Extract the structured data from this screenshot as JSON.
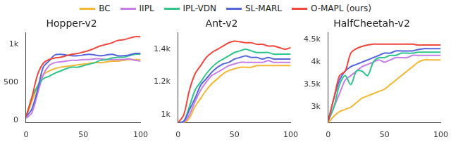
{
  "chart_data": [
    {
      "type": "line",
      "title": "Hopper-v2",
      "x": [
        0,
        5,
        10,
        15,
        20,
        25,
        30,
        35,
        40,
        45,
        50,
        55,
        60,
        65,
        70,
        75,
        80,
        85,
        90,
        95,
        100
      ],
      "xlim": [
        0,
        100
      ],
      "xticks": [
        0,
        50,
        100
      ],
      "ylim": [
        -30,
        1150
      ],
      "yticks": [
        0,
        500,
        {
          "value": 1000,
          "label": "1k"
        }
      ],
      "grid": false,
      "series": [
        {
          "name": "BC",
          "color": "#f5b731",
          "values": [
            50,
            250,
            450,
            600,
            650,
            680,
            700,
            710,
            720,
            730,
            740,
            750,
            760,
            760,
            770,
            780,
            780,
            790,
            800,
            800,
            800
          ]
        },
        {
          "name": "IIPL",
          "color": "#c77de8",
          "values": [
            30,
            100,
            350,
            600,
            720,
            760,
            770,
            780,
            790,
            790,
            800,
            800,
            810,
            810,
            800,
            800,
            800,
            800,
            810,
            790,
            780
          ]
        },
        {
          "name": "IPL-VDN",
          "color": "#2ec48b",
          "values": [
            50,
            300,
            450,
            550,
            580,
            620,
            650,
            680,
            700,
            700,
            720,
            740,
            760,
            790,
            800,
            820,
            830,
            830,
            850,
            870,
            870
          ]
        },
        {
          "name": "SL-MARL",
          "color": "#5566dd",
          "values": [
            50,
            150,
            400,
            700,
            780,
            860,
            870,
            860,
            850,
            850,
            860,
            870,
            860,
            850,
            860,
            870,
            850,
            850,
            860,
            880,
            880
          ]
        },
        {
          "name": "O-MAPL (ours)",
          "color": "#f0463c",
          "values": [
            50,
            300,
            600,
            750,
            800,
            820,
            830,
            850,
            870,
            880,
            900,
            920,
            950,
            980,
            1000,
            1020,
            1050,
            1060,
            1080,
            1100,
            1100
          ]
        }
      ]
    },
    {
      "type": "line",
      "title": "Ant-v2",
      "x": [
        0,
        5,
        10,
        15,
        20,
        25,
        30,
        35,
        40,
        45,
        50,
        55,
        60,
        65,
        70,
        75,
        80,
        85,
        90,
        95,
        100
      ],
      "xlim": [
        0,
        100
      ],
      "xticks": [
        0,
        50,
        100
      ],
      "ylim": [
        950,
        1500
      ],
      "yticks": [
        {
          "value": 1000,
          "label": "1k"
        },
        {
          "value": 1200,
          "label": "1.2k"
        },
        {
          "value": 1400,
          "label": "1.4k"
        }
      ],
      "grid": false,
      "series": [
        {
          "name": "BC",
          "color": "#f5b731",
          "values": [
            950,
            950,
            980,
            1050,
            1100,
            1150,
            1190,
            1220,
            1250,
            1270,
            1280,
            1290,
            1290,
            1290,
            1300,
            1300,
            1300,
            1300,
            1300,
            1300,
            1300
          ]
        },
        {
          "name": "IIPL",
          "color": "#c77de8",
          "values": [
            950,
            955,
            1000,
            1080,
            1150,
            1200,
            1240,
            1260,
            1280,
            1300,
            1310,
            1320,
            1320,
            1320,
            1320,
            1320,
            1330,
            1320,
            1320,
            1320,
            1320
          ]
        },
        {
          "name": "IPL-VDN",
          "color": "#2ec48b",
          "values": [
            950,
            960,
            1050,
            1150,
            1200,
            1250,
            1290,
            1320,
            1340,
            1360,
            1380,
            1390,
            1400,
            1390,
            1380,
            1380,
            1380,
            1370,
            1370,
            1370,
            1370
          ]
        },
        {
          "name": "SL-MARL",
          "color": "#5566dd",
          "values": [
            950,
            960,
            1030,
            1100,
            1180,
            1220,
            1260,
            1290,
            1310,
            1320,
            1340,
            1350,
            1360,
            1350,
            1350,
            1340,
            1350,
            1340,
            1340,
            1340,
            1340
          ]
        },
        {
          "name": "O-MAPL (ours)",
          "color": "#f0463c",
          "values": [
            950,
            1000,
            1150,
            1250,
            1300,
            1350,
            1380,
            1400,
            1420,
            1440,
            1450,
            1445,
            1440,
            1440,
            1430,
            1430,
            1420,
            1420,
            1410,
            1400,
            1410
          ]
        }
      ]
    },
    {
      "type": "line",
      "title": "HalfCheetah-v2",
      "x": [
        0,
        5,
        10,
        15,
        20,
        25,
        30,
        35,
        40,
        45,
        50,
        55,
        60,
        65,
        70,
        75,
        80,
        85,
        90,
        95,
        100
      ],
      "xlim": [
        0,
        100
      ],
      "xticks": [
        0,
        50,
        100
      ],
      "ylim": [
        2650,
        4650
      ],
      "yticks": [
        {
          "value": 3000,
          "label": "3k"
        },
        {
          "value": 3500,
          "label": "3.5k"
        },
        {
          "value": 4000,
          "label": "4k"
        },
        {
          "value": 4500,
          "label": "4.5k"
        }
      ],
      "grid": false,
      "series": [
        {
          "name": "BC",
          "color": "#f5b731",
          "values": [
            2650,
            2800,
            2900,
            2950,
            3000,
            3100,
            3200,
            3250,
            3300,
            3350,
            3400,
            3500,
            3600,
            3700,
            3800,
            3900,
            4000,
            4050,
            4050,
            4050,
            4050
          ]
        },
        {
          "name": "IIPL",
          "color": "#c77de8",
          "values": [
            2700,
            3000,
            3300,
            3600,
            3700,
            3800,
            3900,
            3950,
            4000,
            4050,
            4000,
            4050,
            4100,
            4100,
            4100,
            4150,
            4150,
            4150,
            4150,
            4150,
            4150
          ]
        },
        {
          "name": "IPL-VDN",
          "color": "#2ec48b",
          "values": [
            2700,
            3000,
            3500,
            3700,
            3500,
            3800,
            3800,
            3700,
            4000,
            4100,
            4100,
            4150,
            4150,
            4200,
            4200,
            4200,
            4220,
            4220,
            4220,
            4220,
            4220
          ]
        },
        {
          "name": "SL-MARL",
          "color": "#5566dd",
          "values": [
            2700,
            3200,
            3600,
            3800,
            3900,
            3950,
            4000,
            4050,
            4100,
            4150,
            4200,
            4200,
            4250,
            4250,
            4250,
            4250,
            4280,
            4300,
            4300,
            4300,
            4300
          ]
        },
        {
          "name": "O-MAPL (ours)",
          "color": "#f0463c",
          "values": [
            2700,
            3200,
            3700,
            3800,
            4200,
            4300,
            4350,
            4380,
            4400,
            4400,
            4400,
            4400,
            4400,
            4400,
            4400,
            4400,
            4380,
            4380,
            4380,
            4380,
            4380
          ]
        }
      ]
    }
  ]
}
